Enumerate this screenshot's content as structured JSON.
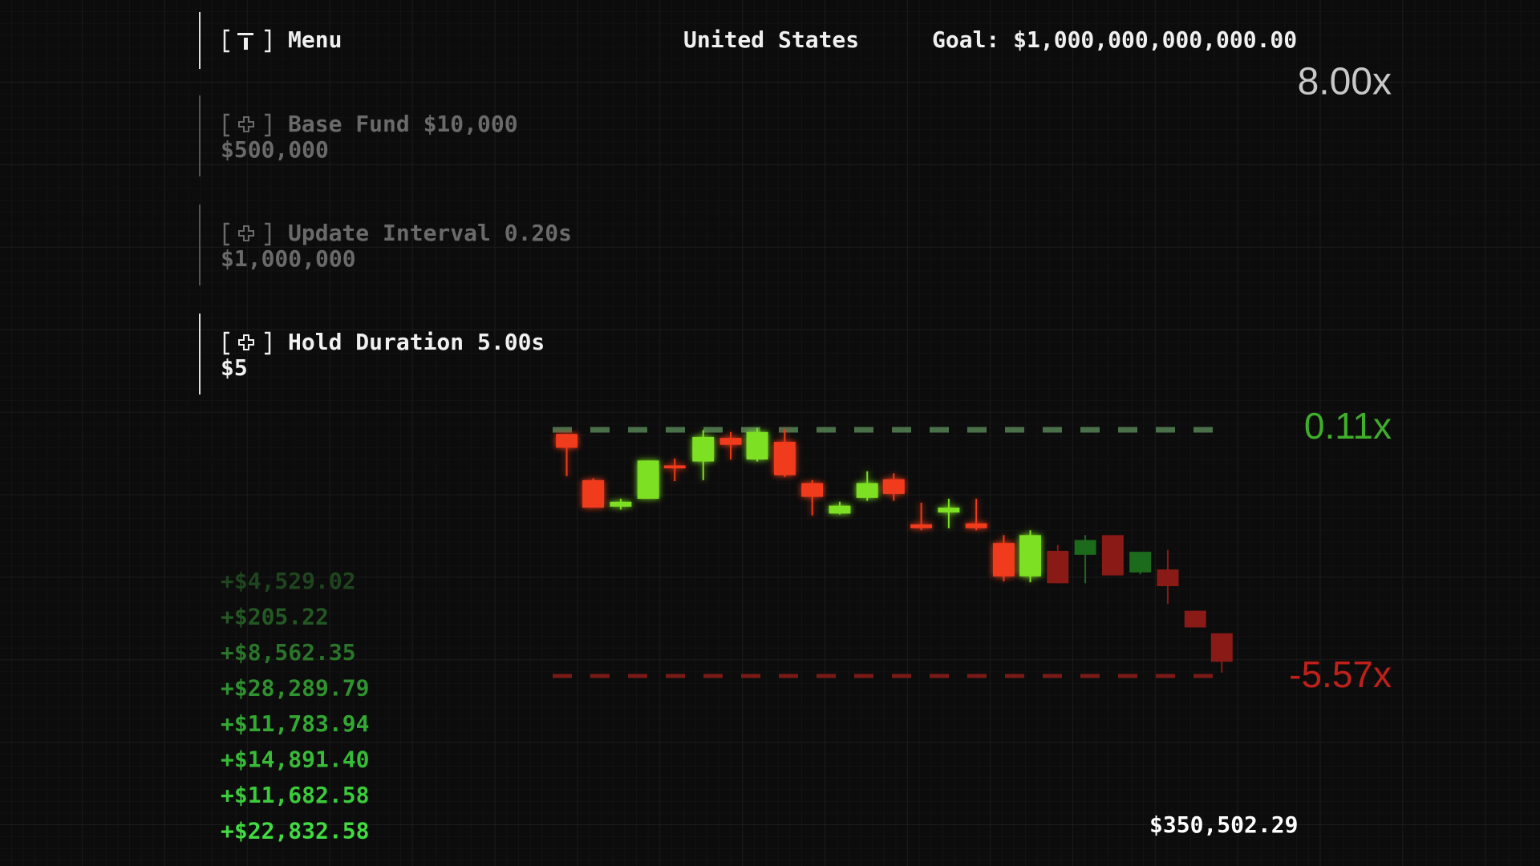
{
  "header": {
    "menu_label": "Menu",
    "country": "United States",
    "goal": "Goal: $1,000,000,000,000.00",
    "multiplier": "8.00x"
  },
  "upgrades": [
    {
      "label": "Base Fund $10,000",
      "cost": "$500,000"
    },
    {
      "label": "Update Interval 0.20s",
      "cost": "$1,000,000"
    },
    {
      "label": "Hold Duration 5.00s",
      "cost": "$5"
    }
  ],
  "chart": {
    "upper_label": "0.11x",
    "lower_label": "-5.57x"
  },
  "gains": [
    "+$4,529.02",
    "+$205.22",
    "+$8,562.35",
    "+$28,289.79",
    "+$11,783.94",
    "+$14,891.40",
    "+$11,682.58",
    "+$22,832.58"
  ],
  "balance": "$350,502.29"
}
